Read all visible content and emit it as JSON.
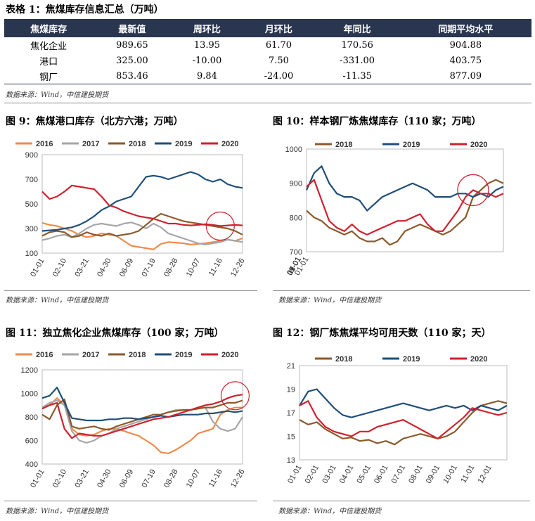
{
  "table": {
    "title": "表格 1：焦煤库存信息汇总（万吨）",
    "headers": [
      "焦煤库存",
      "最新值",
      "周环比",
      "月环比",
      "年同比",
      "同期平均水平"
    ],
    "rows": [
      [
        "焦化企业",
        "989.65",
        "13.95",
        "61.70",
        "170.56",
        "904.88"
      ],
      [
        "港口",
        "325.00",
        "-10.00",
        "7.50",
        "-331.00",
        "403.75"
      ],
      [
        "钢厂",
        "853.46",
        "9.84",
        "-24.00",
        "-11.35",
        "877.09"
      ]
    ],
    "source": "数据来源：Wind，中信建投期货"
  },
  "colors": {
    "2016": "#f08a4b",
    "2017": "#a6a6a6",
    "2018": "#8b5a2b",
    "2019": "#1f4e79",
    "2020": "#d0202e"
  },
  "chart_data": [
    {
      "type": "line",
      "title": "图 9：焦煤港口库存（北方六港；万吨）",
      "source": "数据来源：Wind，中信建投期货",
      "ylim": [
        100,
        900
      ],
      "yticks": [
        100,
        300,
        500,
        700,
        900
      ],
      "xticks": [
        "01-01",
        "02-10",
        "03-21",
        "04-30",
        "06-09",
        "07-19",
        "08-28",
        "10-07",
        "11-16",
        "12-26"
      ],
      "x": [
        "01-01",
        "01-15",
        "01-29",
        "02-10",
        "02-24",
        "03-07",
        "03-21",
        "04-04",
        "04-16",
        "04-30",
        "05-14",
        "05-28",
        "06-09",
        "06-23",
        "07-07",
        "07-19",
        "08-02",
        "08-16",
        "08-28",
        "09-11",
        "09-25",
        "10-07",
        "10-21",
        "11-04",
        "11-16",
        "11-30",
        "12-12",
        "12-26"
      ],
      "series": [
        {
          "name": "2016",
          "values": [
            345,
            330,
            320,
            300,
            280,
            250,
            230,
            240,
            260,
            250,
            240,
            200,
            160,
            150,
            140,
            130,
            175,
            190,
            185,
            180,
            170,
            175,
            180,
            190,
            200,
            210,
            200,
            220
          ]
        },
        {
          "name": "2017",
          "values": [
            205,
            220,
            240,
            250,
            230,
            260,
            300,
            330,
            340,
            330,
            320,
            340,
            350,
            330,
            300,
            340,
            310,
            260,
            240,
            220,
            200,
            180,
            170,
            180,
            190,
            210,
            200,
            190
          ]
        },
        {
          "name": "2018",
          "values": [
            240,
            270,
            280,
            270,
            230,
            240,
            270,
            250,
            240,
            260,
            240,
            250,
            260,
            280,
            330,
            380,
            420,
            400,
            380,
            360,
            350,
            340,
            330,
            320,
            310,
            300,
            280,
            250
          ]
        },
        {
          "name": "2019",
          "values": [
            280,
            285,
            290,
            300,
            310,
            330,
            360,
            400,
            450,
            480,
            520,
            540,
            560,
            640,
            720,
            730,
            720,
            700,
            720,
            740,
            760,
            740,
            700,
            680,
            700,
            660,
            640,
            630
          ]
        },
        {
          "name": "2020",
          "values": [
            600,
            540,
            560,
            600,
            650,
            640,
            630,
            620,
            560,
            490,
            470,
            440,
            420,
            400,
            390,
            380,
            360,
            340,
            340,
            330,
            325,
            330,
            335,
            330,
            320,
            325,
            330,
            325
          ]
        }
      ],
      "annotation": "circle"
    },
    {
      "type": "line",
      "title": "图 10：样本钢厂炼焦煤库存（110 家；万吨）",
      "source": "数据来源：Wind，中信建投期货",
      "ylim": [
        700,
        1000
      ],
      "yticks": [
        700,
        800,
        900,
        1000
      ],
      "xticks": [
        "01-01",
        "03-01",
        "05-01",
        "07-01",
        "09-01",
        "11-01"
      ],
      "x": [
        "01-01",
        "01-15",
        "01-29",
        "02-12",
        "02-26",
        "03-12",
        "03-26",
        "04-09",
        "04-23",
        "05-07",
        "05-21",
        "06-04",
        "06-18",
        "07-02",
        "07-16",
        "07-30",
        "08-13",
        "08-27",
        "09-10",
        "09-24",
        "10-08",
        "10-22",
        "11-05",
        "11-19",
        "12-03",
        "12-17",
        "12-31"
      ],
      "series": [
        {
          "name": "2018",
          "values": [
            820,
            800,
            790,
            770,
            760,
            750,
            760,
            740,
            730,
            730,
            740,
            720,
            730,
            760,
            770,
            780,
            770,
            760,
            750,
            760,
            780,
            800,
            860,
            880,
            900,
            910,
            900
          ]
        },
        {
          "name": "2019",
          "values": [
            880,
            930,
            950,
            900,
            870,
            860,
            860,
            850,
            820,
            840,
            860,
            870,
            880,
            890,
            900,
            890,
            880,
            860,
            860,
            860,
            870,
            870,
            860,
            870,
            860,
            880,
            890
          ]
        },
        {
          "name": "2020",
          "values": [
            890,
            910,
            850,
            790,
            770,
            760,
            780,
            760,
            750,
            760,
            770,
            780,
            790,
            790,
            800,
            810,
            780,
            760,
            760,
            790,
            820,
            860,
            880,
            870,
            870,
            860,
            870
          ]
        }
      ],
      "annotation": "circle"
    },
    {
      "type": "line",
      "title": "图 11：独立焦化企业焦煤库存（100 家；万吨）",
      "source": "数据来源：Wind，中信建投期货",
      "ylim": [
        400,
        1200
      ],
      "yticks": [
        400,
        600,
        800,
        1000,
        1200
      ],
      "xticks": [
        "01-01",
        "02-10",
        "03-21",
        "04-30",
        "06-09",
        "07-19",
        "08-28",
        "10-07",
        "11-16",
        "12-26"
      ],
      "x": [
        "01-01",
        "01-15",
        "01-29",
        "02-10",
        "02-24",
        "03-07",
        "03-21",
        "04-04",
        "04-16",
        "04-30",
        "05-14",
        "05-28",
        "06-09",
        "06-23",
        "07-07",
        "07-19",
        "08-02",
        "08-16",
        "08-28",
        "09-11",
        "09-25",
        "10-07",
        "10-21",
        "11-04",
        "11-16",
        "11-30",
        "12-12",
        "12-26"
      ],
      "series": [
        {
          "name": "2016",
          "values": [
            880,
            900,
            960,
            900,
            700,
            650,
            640,
            650,
            680,
            700,
            700,
            680,
            660,
            640,
            600,
            560,
            500,
            490,
            520,
            560,
            600,
            660,
            680,
            700,
            820,
            860,
            880,
            880
          ]
        },
        {
          "name": "2017",
          "values": [
            880,
            920,
            940,
            900,
            680,
            600,
            580,
            600,
            640,
            660,
            700,
            720,
            740,
            760,
            780,
            800,
            820,
            840,
            860,
            860,
            860,
            880,
            880,
            760,
            700,
            680,
            700,
            800
          ]
        },
        {
          "name": "2018",
          "values": [
            820,
            780,
            900,
            950,
            720,
            700,
            710,
            720,
            700,
            690,
            720,
            740,
            760,
            780,
            800,
            820,
            820,
            840,
            850,
            860,
            860,
            870,
            880,
            880,
            900,
            920,
            920,
            940
          ]
        },
        {
          "name": "2019",
          "values": [
            960,
            980,
            1050,
            920,
            790,
            780,
            770,
            770,
            770,
            780,
            780,
            790,
            790,
            780,
            790,
            800,
            810,
            800,
            810,
            820,
            820,
            820,
            830,
            830,
            840,
            850,
            840,
            850
          ]
        },
        {
          "name": "2020",
          "values": [
            870,
            900,
            920,
            700,
            620,
            660,
            650,
            640,
            640,
            660,
            680,
            700,
            720,
            740,
            760,
            780,
            790,
            800,
            820,
            840,
            860,
            880,
            900,
            910,
            930,
            960,
            980,
            990
          ]
        }
      ],
      "annotation": "circle"
    },
    {
      "type": "line",
      "title": "图 12：钢厂炼焦煤平均可用天数（110 家；天）",
      "source": "数据来源：Wind，中信建投期货",
      "ylim": [
        13,
        21
      ],
      "yticks": [
        13,
        15,
        17,
        19,
        21
      ],
      "xticks": [
        "01-01",
        "02-01",
        "03-01",
        "04-01",
        "05-01",
        "06-01",
        "07-01",
        "08-01",
        "09-01",
        "10-01",
        "11-01",
        "12-01"
      ],
      "x": [
        "01-01",
        "01-15",
        "02-01",
        "02-15",
        "03-01",
        "03-15",
        "04-01",
        "04-15",
        "05-01",
        "05-15",
        "06-01",
        "06-15",
        "07-01",
        "07-15",
        "08-01",
        "08-15",
        "09-01",
        "09-15",
        "10-01",
        "10-15",
        "11-01",
        "11-15",
        "12-01",
        "12-15",
        "12-31"
      ],
      "series": [
        {
          "name": "2018",
          "values": [
            16.4,
            16.0,
            16.2,
            15.6,
            15.2,
            14.8,
            14.9,
            14.6,
            14.7,
            14.4,
            14.6,
            14.3,
            14.8,
            15.0,
            15.2,
            15.0,
            14.8,
            15.0,
            15.4,
            16.2,
            17.0,
            17.6,
            17.8,
            18.0,
            17.8
          ]
        },
        {
          "name": "2019",
          "values": [
            17.6,
            18.8,
            19.0,
            18.2,
            17.4,
            16.8,
            16.6,
            16.8,
            17.0,
            17.2,
            17.4,
            17.6,
            17.8,
            17.6,
            17.4,
            17.2,
            17.4,
            17.6,
            17.4,
            17.6,
            17.2,
            17.6,
            17.4,
            17.2,
            17.6
          ]
        },
        {
          "name": "2020",
          "values": [
            17.6,
            18.0,
            16.6,
            15.8,
            15.4,
            15.2,
            15.0,
            15.4,
            15.4,
            15.8,
            16.0,
            16.2,
            16.4,
            16.0,
            15.6,
            15.2,
            14.8,
            15.4,
            16.0,
            16.6,
            17.4,
            17.2,
            17.0,
            16.8,
            17.0
          ]
        }
      ]
    }
  ]
}
